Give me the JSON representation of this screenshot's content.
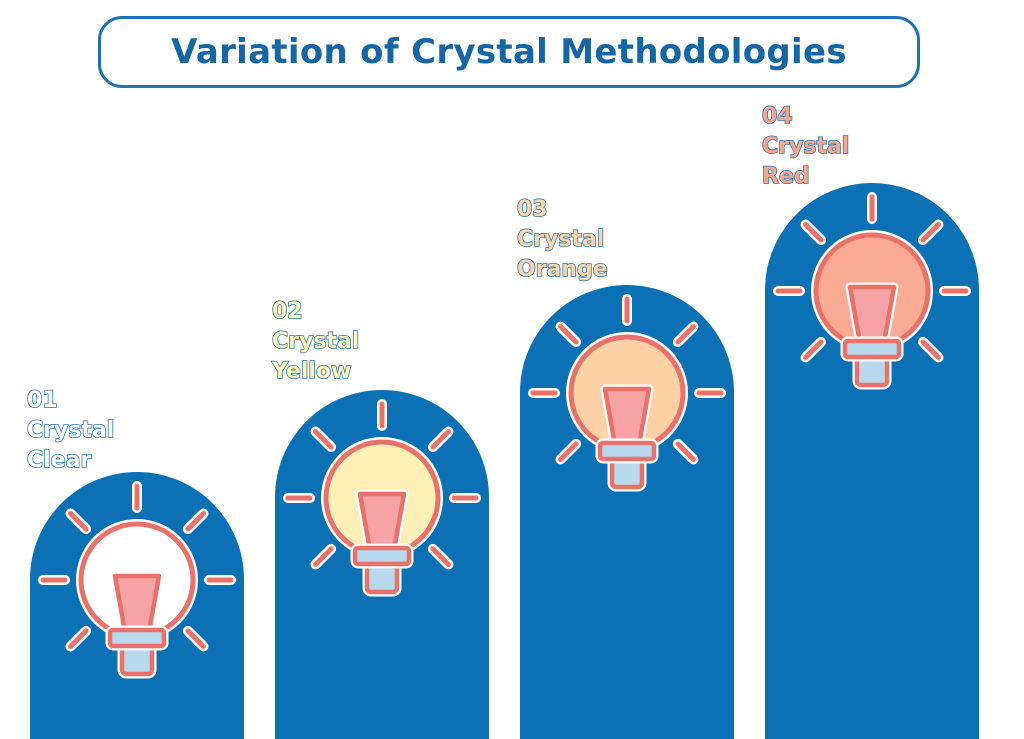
{
  "title": "Variation of Crystal Methodologies",
  "colors": {
    "pillar": "#0b70b4",
    "stroke": "#e8716a",
    "outline": "#ffffff",
    "base": "#b9d8ec",
    "filament": "#f6a3a5"
  },
  "steps": [
    {
      "number": "01",
      "line1": "Crystal",
      "line2": "Clear",
      "bulb_color": "#ffffff",
      "label_color": "#ffffff",
      "icon": "lightbulb-icon"
    },
    {
      "number": "02",
      "line1": "Crystal",
      "line2": "Yellow",
      "bulb_color": "#fff0b8",
      "label_color": "#fff2b5",
      "icon": "lightbulb-icon"
    },
    {
      "number": "03",
      "line1": "Crystal",
      "line2": "Orange",
      "bulb_color": "#fdd1a6",
      "label_color": "#fdd4a9",
      "icon": "lightbulb-icon"
    },
    {
      "number": "04",
      "line1": "Crystal",
      "line2": "Red",
      "bulb_color": "#f9ab93",
      "label_color": "#f6a88c",
      "icon": "lightbulb-icon"
    }
  ]
}
